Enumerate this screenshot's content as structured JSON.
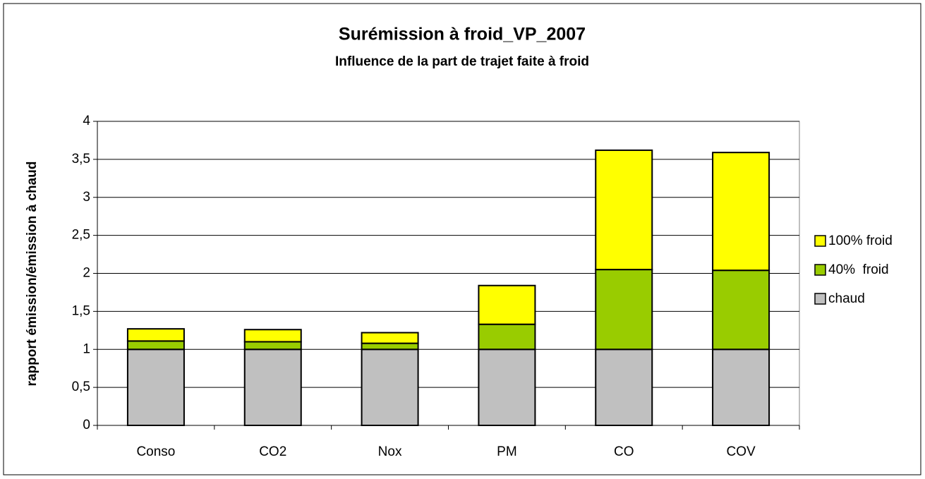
{
  "chart_data": {
    "type": "stacked_bar",
    "title": "Surémission à froid_VP_2007",
    "subtitle": "Influence de la part de trajet faite à froid",
    "y_label": "rapport émission/émission à chaud",
    "categories": [
      "Conso",
      "CO2",
      "Nox",
      "PM",
      "CO",
      "COV"
    ],
    "series": [
      {
        "name": "chaud",
        "color": "#c0c0c0",
        "values": [
          1,
          1,
          1,
          1,
          1,
          1
        ]
      },
      {
        "name": "40%  froid",
        "color": "#99cc00",
        "values": [
          0.11,
          0.1,
          0.08,
          0.33,
          1.05,
          1.04
        ]
      },
      {
        "name": "100% froid",
        "color": "#ffff00",
        "values": [
          0.16,
          0.16,
          0.14,
          0.51,
          1.57,
          1.55
        ]
      }
    ],
    "ylim": [
      0,
      4
    ],
    "yticks": [
      0,
      {
        "value": 0.5,
        "label": "0,5"
      },
      1,
      {
        "value": 1.5,
        "label": "1,5"
      },
      2,
      {
        "value": 2.5,
        "label": "2,5"
      },
      3,
      {
        "value": 3.5,
        "label": "3,5"
      },
      4
    ],
    "grid": true,
    "legend": "right"
  }
}
